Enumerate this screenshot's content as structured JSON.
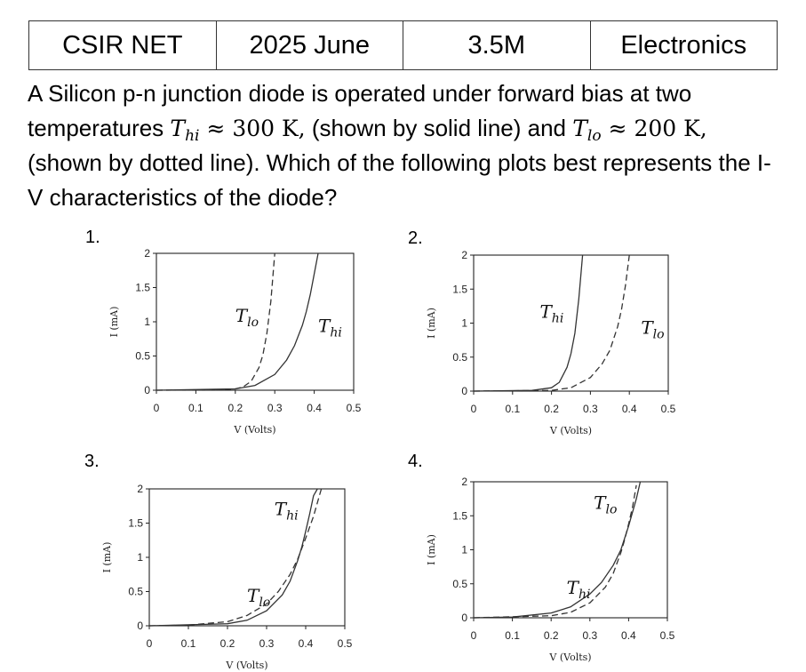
{
  "header": {
    "cells": [
      "CSIR NET",
      "2025 June",
      "3.5M",
      "Electronics"
    ]
  },
  "question": {
    "text_1": "A Silicon p-n junction diode is operated under forward bias at two temperatures ",
    "t_hi_symbol": "T",
    "t_hi_sub": "hi",
    "t_hi_value": " ≈ 300 K,",
    "text_2": " (shown by solid line) and ",
    "t_lo_symbol": "T",
    "t_lo_sub": "lo",
    "t_lo_approx": " ≈ ",
    "t_lo_value": "200 K,",
    "text_3": " (shown by dotted line). Which of the following plots best represents the I-V characteristics of the diode?"
  },
  "chart_data": [
    {
      "option": "1.",
      "type": "line",
      "xlabel": "V (Volts)",
      "ylabel": "I (mA)",
      "xlim": [
        0,
        0.5
      ],
      "ylim": [
        0,
        2
      ],
      "xticks": [
        "0",
        "0.1",
        "0.2",
        "0.3",
        "0.4",
        "0.5"
      ],
      "yticks": [
        "0",
        "0.5",
        "1",
        "1.5",
        "2"
      ],
      "series": [
        {
          "name": "T_lo",
          "style": "dashed",
          "x": [
            0,
            0.15,
            0.2,
            0.22,
            0.24,
            0.26,
            0.27,
            0.28,
            0.29,
            0.3
          ],
          "y": [
            0,
            0.005,
            0.02,
            0.05,
            0.13,
            0.33,
            0.52,
            0.83,
            1.3,
            2.0
          ]
        },
        {
          "name": "T_hi",
          "style": "solid",
          "x": [
            0,
            0.2,
            0.25,
            0.3,
            0.33,
            0.35,
            0.37,
            0.38,
            0.39,
            0.4,
            0.41
          ],
          "y": [
            0,
            0.02,
            0.07,
            0.23,
            0.44,
            0.65,
            0.95,
            1.15,
            1.4,
            1.7,
            2.0
          ]
        }
      ],
      "annotations": [
        {
          "symbol": "T",
          "sub": "lo",
          "x": 0.2,
          "y": 1.0
        },
        {
          "symbol": "T",
          "sub": "hi",
          "x": 0.41,
          "y": 0.85
        }
      ]
    },
    {
      "option": "2.",
      "type": "line",
      "xlabel": "V (Volts)",
      "ylabel": "I (mA)",
      "xlim": [
        0,
        0.5
      ],
      "ylim": [
        0,
        2
      ],
      "xticks": [
        "0",
        "0.1",
        "0.2",
        "0.3",
        "0.4",
        "0.5"
      ],
      "yticks": [
        "0",
        "0.5",
        "1",
        "1.5",
        "2"
      ],
      "series": [
        {
          "name": "T_hi",
          "style": "solid",
          "x": [
            0,
            0.15,
            0.2,
            0.22,
            0.24,
            0.25,
            0.26,
            0.27,
            0.28
          ],
          "y": [
            0,
            0.01,
            0.05,
            0.13,
            0.35,
            0.55,
            0.85,
            1.35,
            2.0
          ]
        },
        {
          "name": "T_lo",
          "style": "dashed",
          "x": [
            0,
            0.2,
            0.25,
            0.3,
            0.33,
            0.35,
            0.37,
            0.38,
            0.39,
            0.4
          ],
          "y": [
            0,
            0.01,
            0.05,
            0.2,
            0.4,
            0.6,
            0.95,
            1.2,
            1.55,
            2.0
          ]
        }
      ],
      "annotations": [
        {
          "symbol": "T",
          "sub": "hi",
          "x": 0.17,
          "y": 1.08
        },
        {
          "symbol": "T",
          "sub": "lo",
          "x": 0.43,
          "y": 0.84
        }
      ]
    },
    {
      "option": "3.",
      "type": "line",
      "xlabel": "V (Volts)",
      "ylabel": "I (mA)",
      "xlim": [
        0,
        0.5
      ],
      "ylim": [
        0,
        2
      ],
      "xticks": [
        "0",
        "0.1",
        "0.2",
        "0.3",
        "0.4",
        "0.5"
      ],
      "yticks": [
        "0",
        "0.5",
        "1",
        "1.5",
        "2"
      ],
      "series": [
        {
          "name": "T_lo",
          "style": "dashed",
          "x": [
            0,
            0.1,
            0.2,
            0.25,
            0.3,
            0.33,
            0.36,
            0.38,
            0.4,
            0.42,
            0.44
          ],
          "y": [
            0,
            0.01,
            0.06,
            0.15,
            0.32,
            0.5,
            0.75,
            0.98,
            1.28,
            1.6,
            2.0
          ]
        },
        {
          "name": "T_hi",
          "style": "solid",
          "x": [
            0,
            0.2,
            0.25,
            0.3,
            0.34,
            0.36,
            0.38,
            0.39,
            0.4,
            0.41,
            0.42,
            0.43
          ],
          "y": [
            0,
            0.03,
            0.08,
            0.22,
            0.45,
            0.65,
            0.96,
            1.15,
            1.38,
            1.63,
            1.9,
            2.0
          ]
        }
      ],
      "annotations": [
        {
          "symbol": "T",
          "sub": "hi",
          "x": 0.32,
          "y": 1.62
        },
        {
          "symbol": "T",
          "sub": "lo",
          "x": 0.25,
          "y": 0.35
        }
      ]
    },
    {
      "option": "4.",
      "type": "line",
      "xlabel": "V (Volts)",
      "ylabel": "I (mA)",
      "xlim": [
        0,
        0.5
      ],
      "ylim": [
        0,
        2
      ],
      "xticks": [
        "0",
        "0.1",
        "0.2",
        "0.3",
        "0.4",
        "0.5"
      ],
      "yticks": [
        "0",
        "0.5",
        "1",
        "1.5",
        "2"
      ],
      "series": [
        {
          "name": "T_hi",
          "style": "solid",
          "x": [
            0,
            0.1,
            0.2,
            0.25,
            0.3,
            0.33,
            0.36,
            0.38,
            0.4,
            0.42,
            0.43
          ],
          "y": [
            0,
            0.01,
            0.07,
            0.16,
            0.35,
            0.52,
            0.77,
            1.0,
            1.35,
            1.75,
            2.0
          ]
        },
        {
          "name": "T_lo",
          "style": "dashed",
          "x": [
            0,
            0.2,
            0.25,
            0.3,
            0.34,
            0.36,
            0.38,
            0.39,
            0.4,
            0.41,
            0.42
          ],
          "y": [
            0,
            0.03,
            0.08,
            0.22,
            0.45,
            0.65,
            0.96,
            1.15,
            1.38,
            1.63,
            1.95
          ]
        }
      ],
      "annotations": [
        {
          "symbol": "T",
          "sub": "lo",
          "x": 0.31,
          "y": 1.6
        },
        {
          "symbol": "T",
          "sub": "hi",
          "x": 0.24,
          "y": 0.35
        }
      ]
    }
  ]
}
